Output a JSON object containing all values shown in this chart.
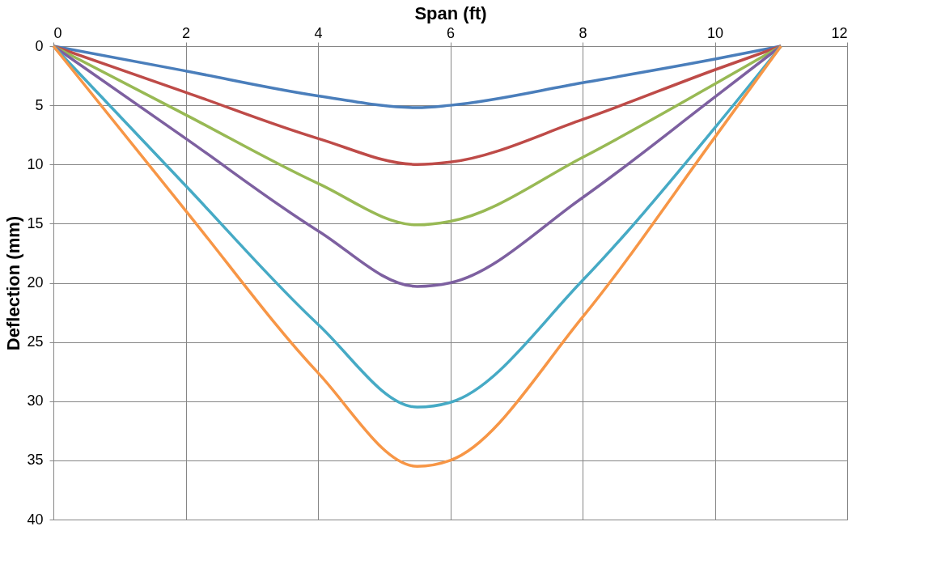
{
  "chart_data": {
    "type": "line",
    "xlabel": "Span (ft)",
    "ylabel": "Deflection (mm)",
    "x": [
      0,
      2,
      4,
      5.5,
      6,
      8,
      10,
      11
    ],
    "series": [
      {
        "color": "#4a7ebb",
        "values": [
          0,
          2.1,
          4.2,
          5.2,
          5.0,
          3.1,
          1.1,
          0
        ]
      },
      {
        "color": "#be4b48",
        "values": [
          0,
          3.9,
          7.8,
          10.0,
          9.8,
          6.2,
          2.0,
          0
        ]
      },
      {
        "color": "#98b954",
        "values": [
          0,
          5.8,
          11.6,
          15.1,
          14.8,
          9.4,
          3.2,
          0
        ]
      },
      {
        "color": "#7d60a0",
        "values": [
          0,
          7.8,
          15.6,
          20.3,
          20.0,
          12.8,
          4.3,
          0
        ]
      },
      {
        "color": "#46aac5",
        "values": [
          0,
          11.8,
          23.5,
          30.5,
          30.1,
          19.8,
          6.9,
          0
        ]
      },
      {
        "color": "#f79646",
        "values": [
          0,
          13.9,
          27.6,
          35.5,
          35.0,
          22.9,
          7.7,
          0
        ]
      }
    ],
    "xlim": [
      0,
      12
    ],
    "xticks": [
      0,
      2,
      4,
      6,
      8,
      10,
      12
    ],
    "ylim": [
      40,
      0
    ],
    "yticks": [
      0,
      5,
      10,
      15,
      20,
      25,
      30,
      35,
      40
    ],
    "grid": true,
    "legend": false,
    "marker": "none",
    "line_style": "solid"
  }
}
